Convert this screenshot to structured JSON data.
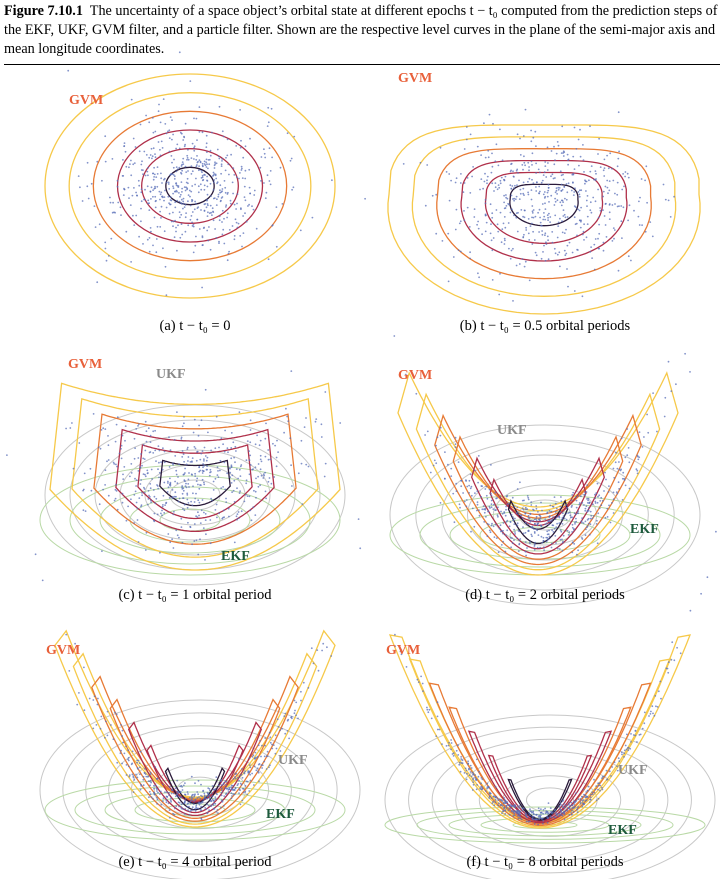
{
  "caption": {
    "label": "Figure 7.10.1",
    "text": "The uncertainty of a space object’s orbital state at different epochs t − t₀ computed from the prediction steps of the EKF, UKF, GVM filter, and a particle filter. Shown are the respective level curves in the plane of the semi-major axis and mean longitude coordinates."
  },
  "colors": {
    "gvm_label": "#e8603a",
    "ukf_label": "#8a8a8a",
    "ekf_label": "#1d5a3c",
    "particles": "#5a6fb8",
    "level_outer": "#f6c94a",
    "level_mid": "#e77a35",
    "level_inner": "#b0304a",
    "level_core": "#2a1a3a",
    "ukf_curves": "#c8c8c8",
    "ekf_curves": "#b9d9a6"
  },
  "panels": [
    {
      "id": "a",
      "caption": "(a) t − t₀ = 0",
      "labels": {
        "gvm": "GVM"
      }
    },
    {
      "id": "b",
      "caption": "(b) t − t₀ = 0.5 orbital periods",
      "labels": {
        "gvm": "GVM"
      }
    },
    {
      "id": "c",
      "caption": "(c) t − t₀ = 1 orbital period",
      "labels": {
        "gvm": "GVM",
        "ukf": "UKF",
        "ekf": "EKF"
      }
    },
    {
      "id": "d",
      "caption": "(d) t − t₀ = 2 orbital periods",
      "labels": {
        "gvm": "GVM",
        "ukf": "UKF",
        "ekf": "EKF"
      }
    },
    {
      "id": "e",
      "caption": "(e) t − t₀ = 4 orbital period",
      "labels": {
        "gvm": "GVM",
        "ukf": "UKF",
        "ekf": "EKF"
      }
    },
    {
      "id": "f",
      "caption": "(f) t − t₀ = 8 orbital periods",
      "labels": {
        "gvm": "GVM",
        "ukf": "UKF",
        "ekf": "EKF"
      }
    }
  ]
}
